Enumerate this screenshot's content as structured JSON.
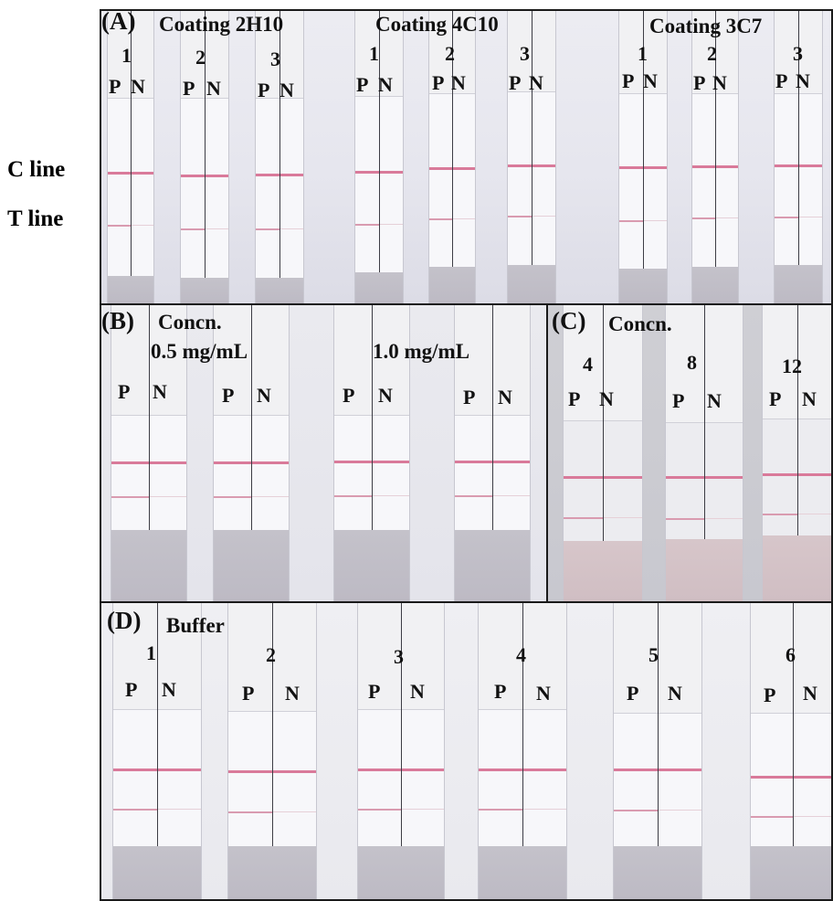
{
  "side_labels": {
    "c_line": "C line",
    "t_line": "T line"
  },
  "panel_a": {
    "tag": "(A)",
    "groups": [
      {
        "title": "Coating 2H10",
        "strips": [
          "1",
          "2",
          "3"
        ]
      },
      {
        "title": "Coating 4C10",
        "strips": [
          "1",
          "2",
          "3"
        ]
      },
      {
        "title": "Coating 3C7",
        "strips": [
          "1",
          "2",
          "3"
        ]
      }
    ],
    "p": "P",
    "n": "N"
  },
  "panel_b": {
    "tag": "(B)",
    "title": "Concn.",
    "concentrations": [
      "0.5 mg/mL",
      "1.0 mg/mL"
    ],
    "p": "P",
    "n": "N"
  },
  "panel_c": {
    "tag": "(C)",
    "title": "Concn.",
    "strips": [
      "4",
      "8",
      "12"
    ],
    "p": "P",
    "n": "N"
  },
  "panel_d": {
    "tag": "(D)",
    "title": "Buffer",
    "strips": [
      "1",
      "2",
      "3",
      "4",
      "5",
      "6"
    ],
    "p": "P",
    "n": "N"
  },
  "colors": {
    "control_line": "#d97a9a",
    "test_line": "#d99bb0",
    "sample_pad": "#c4c2ca",
    "border": "#1a1a1a"
  }
}
